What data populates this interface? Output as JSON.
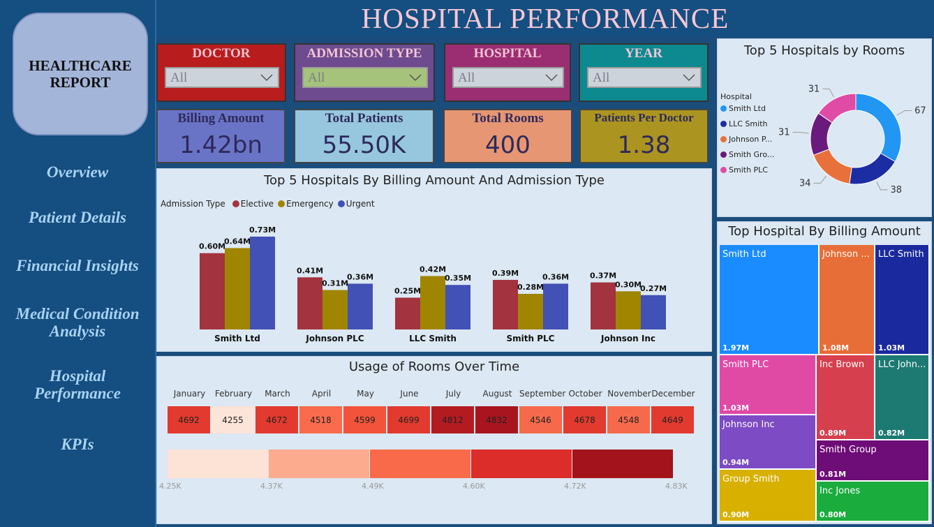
{
  "header": {
    "title": "HOSPITAL PERFORMANCE"
  },
  "sidebar": {
    "logo": "HEALTHCARE REPORT",
    "items": [
      {
        "label": "Overview"
      },
      {
        "label": "Patient Details"
      },
      {
        "label": "Financial Insights"
      },
      {
        "label": "Medical Condition Analysis"
      },
      {
        "label": "Hospital Performance"
      },
      {
        "label": "KPIs"
      }
    ]
  },
  "filters": [
    {
      "label": "DOCTOR",
      "value": "All",
      "color": "#b81c1c",
      "dd_color": "#cdd3db"
    },
    {
      "label": "ADMISSION TYPE",
      "value": "All",
      "color": "#6d4b8e",
      "dd_color": "#a5c37a"
    },
    {
      "label": "HOSPITAL",
      "value": "All",
      "color": "#9b2e72",
      "dd_color": "#cdd3db"
    },
    {
      "label": "YEAR",
      "value": "All",
      "color": "#0c8a90",
      "dd_color": "#cdd3db"
    }
  ],
  "kpis": [
    {
      "label": "Billing Amount",
      "value": "1.42bn",
      "color": "#6a74c7"
    },
    {
      "label": "Total Patients",
      "value": "55.50K",
      "color": "#97c7de"
    },
    {
      "label": "Total Rooms",
      "value": "400",
      "color": "#e79673"
    },
    {
      "label": "Patients Per Doctor",
      "value": "1.38",
      "color": "#ac9420"
    }
  ],
  "bar_chart": {
    "title": "Top 5 Hospitals By Billing Amount And Admission Type",
    "legend_title": "Admission Type",
    "chart_data": {
      "type": "bar",
      "categories": [
        "Smith Ltd",
        "Johnson PLC",
        "LLC Smith",
        "Smith PLC",
        "Johnson Inc"
      ],
      "series": [
        {
          "name": "Elective",
          "color": "#a3333e",
          "values": [
            0.6,
            0.41,
            0.25,
            0.39,
            0.37
          ],
          "labels": [
            "0.60M",
            "0.41M",
            "0.25M",
            "0.39M",
            "0.37M"
          ]
        },
        {
          "name": "Emergency",
          "color": "#a08500",
          "values": [
            0.64,
            0.31,
            0.42,
            0.28,
            0.3
          ],
          "labels": [
            "0.64M",
            "0.31M",
            "0.42M",
            "0.28M",
            "0.30M"
          ]
        },
        {
          "name": "Urgent",
          "color": "#4151b5",
          "values": [
            0.73,
            0.36,
            0.35,
            0.36,
            0.27
          ],
          "labels": [
            "0.73M",
            "0.36M",
            "0.35M",
            "0.36M",
            "0.27M"
          ]
        }
      ],
      "unit": "M"
    }
  },
  "donut": {
    "title": "Top 5 Hospitals by Rooms",
    "legend_title": "Hospital",
    "chart_data": {
      "type": "pie",
      "labels": [
        "Smith Ltd",
        "LLC Smith",
        "Johnson P...",
        "Smith Gro...",
        "Smith PLC"
      ],
      "values": [
        67,
        38,
        34,
        31,
        31
      ],
      "colors": [
        "#2196f3",
        "#1c2ca3",
        "#e8703a",
        "#6a1a7d",
        "#e04ba6"
      ]
    }
  },
  "treemap": {
    "title": "Top Hospital By Billing Amount",
    "tiles": [
      {
        "name": "Smith Ltd",
        "value": "1.97M",
        "color": "#1a8cff"
      },
      {
        "name": "Johnson ...",
        "value": "1.08M",
        "color": "#e86e37"
      },
      {
        "name": "LLC Smith",
        "value": "1.03M",
        "color": "#1a2a9e"
      },
      {
        "name": "Smith PLC",
        "value": "1.03M",
        "color": "#e04aa5"
      },
      {
        "name": "Inc Brown",
        "value": "0.89M",
        "color": "#d6404e"
      },
      {
        "name": "LLC John...",
        "value": "0.82M",
        "color": "#1c7a72"
      },
      {
        "name": "Johnson Inc",
        "value": "0.94M",
        "color": "#7d4bc4"
      },
      {
        "name": "Smith Group",
        "value": "0.81M",
        "color": "#6f0d78"
      },
      {
        "name": "Group Smith",
        "value": "0.90M",
        "color": "#d7b000"
      },
      {
        "name": "Inc Jones",
        "value": "0.80M",
        "color": "#1aac3c"
      }
    ]
  },
  "rooms": {
    "title": "Usage of Rooms Over Time",
    "chart_data": {
      "type": "heatmap",
      "x": [
        "January",
        "February",
        "March",
        "April",
        "May",
        "June",
        "July",
        "August",
        "September",
        "October",
        "November",
        "December"
      ],
      "values": [
        4692,
        4255,
        4672,
        4518,
        4599,
        4699,
        4812,
        4832,
        4546,
        4678,
        4548,
        4649
      ],
      "colors": [
        "#e23a2e",
        "#fde4d8",
        "#e23a2e",
        "#f96b4c",
        "#f2533a",
        "#e23a2e",
        "#b41b21",
        "#a9151e",
        "#f66a4b",
        "#e23a2e",
        "#f66a4b",
        "#e23a2e"
      ]
    },
    "scale": {
      "labels": [
        "4.25K",
        "4.37K",
        "4.49K",
        "4.60K",
        "4.72K",
        "4.83K"
      ],
      "colors": [
        "#fde2d6",
        "#fcab8e",
        "#f96a4a",
        "#dc2d2a",
        "#a3131b"
      ]
    }
  }
}
